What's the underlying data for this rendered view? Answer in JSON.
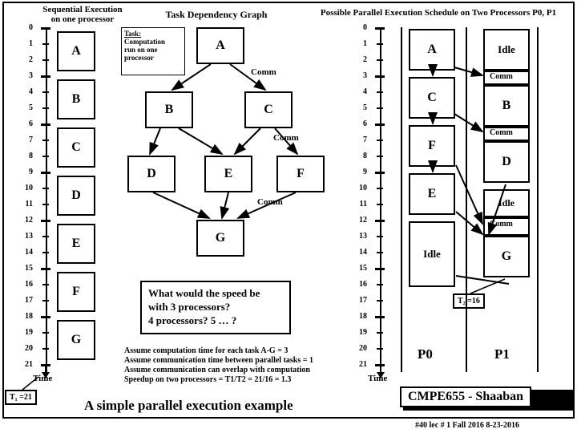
{
  "headers": {
    "seq": "Sequential Execution\non one processor",
    "dep": "Task Dependency Graph",
    "par": "Possible Parallel Execution Schedule on Two Processors P0, P1"
  },
  "taskdef": {
    "t": "Task:",
    "d": "Computation\nrun on one\nprocessor"
  },
  "tasks": [
    "A",
    "B",
    "C",
    "D",
    "E",
    "F",
    "G"
  ],
  "comm": "Comm",
  "idle": "Idle",
  "question": {
    "l1": "What would the speed be",
    "l2": "with 3 processors?",
    "l3": "4 processors?  5 … ?"
  },
  "assume": {
    "l1": "Assume computation time for each task A-G = 3",
    "l2": "Assume communication time between parallel tasks = 1",
    "l3": "Assume communication can overlap with computation",
    "l4": "Speedup on two processors = T1/T2 = 21/16 = 1.3"
  },
  "t1": "T₁ =21",
  "t2": "T₂ =16",
  "time": "Time",
  "p0": "P0",
  "p1": "P1",
  "title": "A simple parallel execution example",
  "class": "CMPE655 - Shaaban",
  "foot": "#40  lec # 1   Fall 2016  8-23-2016"
}
